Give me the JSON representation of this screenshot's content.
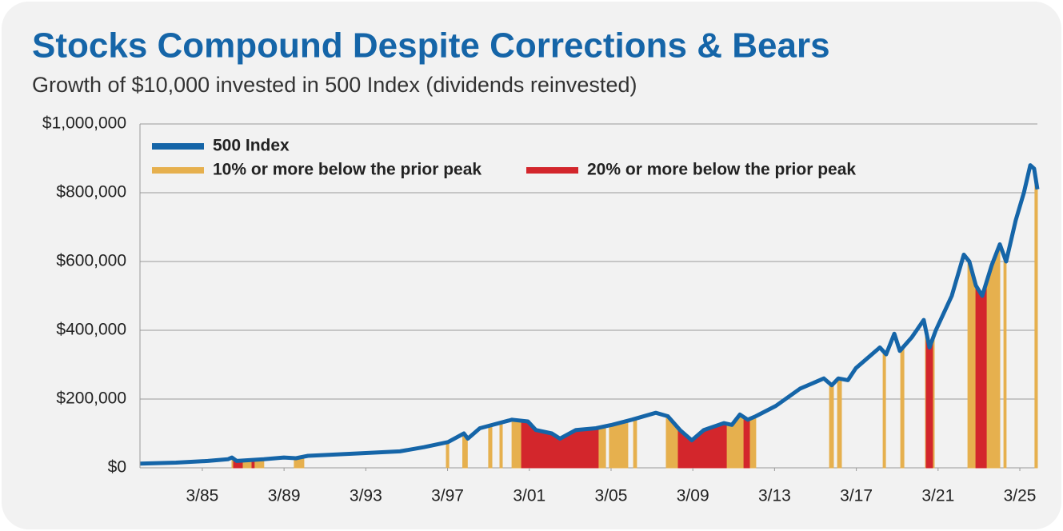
{
  "chart_data": {
    "type": "line",
    "title": "Stocks Compound Despite Corrections & Bears",
    "subtitle": "Growth of $10,000 invested in 500 Index (dividends reinvested)",
    "x": [
      1982.12,
      1983.88,
      1985.44,
      1986.42,
      1986.62,
      1986.85,
      1988.18,
      1989.16,
      1989.75,
      1990.34,
      1992.88,
      1994.84,
      1996.01,
      1997.19,
      1997.97,
      1998.16,
      1998.75,
      2000.32,
      2001.1,
      2001.49,
      2002.27,
      2002.67,
      2003.45,
      2004.43,
      2005.21,
      2006.19,
      2007.36,
      2007.95,
      2008.54,
      2009.12,
      2009.71,
      2010.69,
      2011.08,
      2011.47,
      2011.86,
      2012.25,
      2013.23,
      2014.41,
      2015.58,
      2015.97,
      2016.29,
      2016.76,
      2017.15,
      2018.32,
      2018.63,
      2019.03,
      2019.3,
      2019.89,
      2020.47,
      2020.75,
      2021.06,
      2021.84,
      2022.43,
      2022.7,
      2023.02,
      2023.33,
      2023.8,
      2024.19,
      2024.5,
      2024.97,
      2025.37,
      2025.68,
      2025.87,
      2026.03
    ],
    "series": [
      {
        "name": "500 Index",
        "color": "#1565a8",
        "values": [
          12000,
          15000,
          20000,
          25000,
          30000,
          20000,
          25000,
          30000,
          28000,
          35000,
          42000,
          48000,
          60000,
          75000,
          100000,
          85000,
          115000,
          140000,
          135000,
          110000,
          100000,
          85000,
          110000,
          115000,
          125000,
          140000,
          160000,
          150000,
          110000,
          80000,
          110000,
          130000,
          125000,
          155000,
          140000,
          150000,
          180000,
          230000,
          260000,
          240000,
          260000,
          255000,
          290000,
          350000,
          330000,
          390000,
          340000,
          380000,
          430000,
          350000,
          400000,
          500000,
          620000,
          600000,
          530000,
          500000,
          590000,
          650000,
          600000,
          720000,
          800000,
          880000,
          870000,
          810000
        ]
      }
    ],
    "shading": [
      {
        "name": "10% or more below the prior peak",
        "color": "#e6b04e",
        "periods": [
          [
            1986.62,
            1988.18
          ],
          [
            1989.67,
            1990.14
          ],
          [
            1997.11,
            1997.23
          ],
          [
            1997.91,
            1998.14
          ],
          [
            1999.18,
            1999.34
          ],
          [
            1999.73,
            1999.85
          ],
          [
            2000.32,
            2004.9
          ],
          [
            2005.09,
            2005.99
          ],
          [
            2006.27,
            2006.42
          ],
          [
            2007.87,
            2012.25
          ],
          [
            2015.86,
            2016.05
          ],
          [
            2016.25,
            2016.44
          ],
          [
            2018.48,
            2018.6
          ],
          [
            2019.34,
            2019.5
          ],
          [
            2020.55,
            2020.98
          ],
          [
            2022.63,
            2024.19
          ],
          [
            2024.39,
            2024.5
          ],
          [
            2025.91,
            2026.03
          ]
        ]
      },
      {
        "name": "20% or more below the prior peak",
        "color": "#d3262c",
        "periods": [
          [
            1986.7,
            1987.13
          ],
          [
            1987.6,
            1987.71
          ],
          [
            2000.79,
            2004.54
          ],
          [
            2008.46,
            2010.81
          ],
          [
            2011.67,
            2011.94
          ],
          [
            2020.59,
            2020.9
          ],
          [
            2023.02,
            2023.53
          ]
        ]
      }
    ],
    "xlim": [
      1982.12,
      2026.03
    ],
    "xticks": [
      {
        "value": 1985.17,
        "label": "3/85"
      },
      {
        "value": 1989.17,
        "label": "3/89"
      },
      {
        "value": 1993.17,
        "label": "3/93"
      },
      {
        "value": 1997.17,
        "label": "3/97"
      },
      {
        "value": 2001.17,
        "label": "3/01"
      },
      {
        "value": 2005.17,
        "label": "3/05"
      },
      {
        "value": 2009.17,
        "label": "3/09"
      },
      {
        "value": 2013.17,
        "label": "3/13"
      },
      {
        "value": 2017.17,
        "label": "3/17"
      },
      {
        "value": 2021.17,
        "label": "3/21"
      },
      {
        "value": 2025.17,
        "label": "3/25"
      }
    ],
    "ylim": [
      0,
      1000000
    ],
    "yticks": [
      {
        "value": 0,
        "label": "$0"
      },
      {
        "value": 200000,
        "label": "$200,000"
      },
      {
        "value": 400000,
        "label": "$400,000"
      },
      {
        "value": 600000,
        "label": "$600,000"
      },
      {
        "value": 800000,
        "label": "$800,000"
      },
      {
        "value": 1000000,
        "label": "$1,000,000"
      }
    ],
    "grid": true
  }
}
